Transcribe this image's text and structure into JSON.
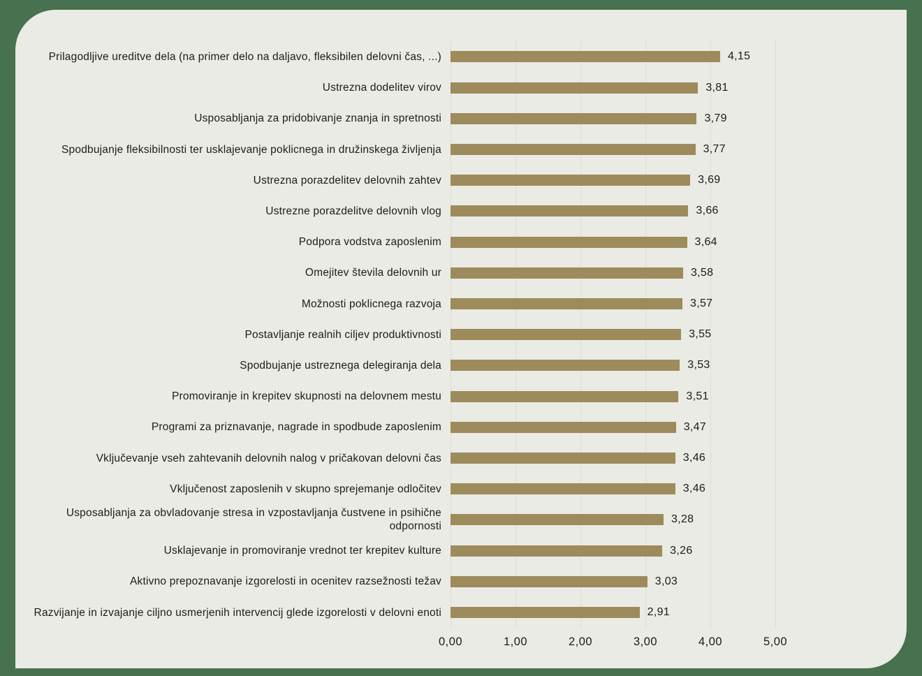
{
  "chart_data": {
    "type": "bar",
    "orientation": "horizontal",
    "title": "",
    "xlabel": "",
    "ylabel": "",
    "xlim": [
      0,
      5
    ],
    "grid": "vertical",
    "legend": "none",
    "categories": [
      "Prilagodljive ureditve dela (na primer delo na daljavo, fleksibilen delovni čas, ...)",
      "Ustrezna dodelitev virov",
      "Usposabljanja za pridobivanje znanja in spretnosti",
      "Spodbujanje fleksibilnosti ter usklajevanje poklicnega in družinskega življenja",
      "Ustrezna porazdelitev delovnih zahtev",
      "Ustrezne porazdelitve delovnih vlog",
      "Podpora vodstva zaposlenim",
      "Omejitev števila delovnih ur",
      "Možnosti poklicnega razvoja",
      "Postavljanje realnih ciljev produktivnosti",
      "Spodbujanje ustreznega delegiranja dela",
      "Promoviranje in krepitev skupnosti na delovnem mestu",
      "Programi za priznavanje, nagrade in spodbude zaposlenim",
      "Vključevanje vseh zahtevanih delovnih nalog v pričakovan delovni čas",
      "Vključenost zaposlenih v skupno sprejemanje odločitev",
      "Usposabljanja za obvladovanje stresa in vzpostavljanja čustvene in psihične odpornosti",
      "Usklajevanje in promoviranje vrednot ter krepitev kulture",
      "Aktivno prepoznavanje izgorelosti in ocenitev razsežnosti težav",
      "Razvijanje in izvajanje ciljno usmerjenih intervencij glede izgorelosti v delovni enoti"
    ],
    "values": [
      4.15,
      3.81,
      3.79,
      3.77,
      3.69,
      3.66,
      3.64,
      3.58,
      3.57,
      3.55,
      3.53,
      3.51,
      3.47,
      3.46,
      3.46,
      3.28,
      3.26,
      3.03,
      2.91
    ],
    "value_labels": [
      "4,15",
      "3,81",
      "3,79",
      "3,77",
      "3,69",
      "3,66",
      "3,64",
      "3,58",
      "3,57",
      "3,55",
      "3,53",
      "3,51",
      "3,47",
      "3,46",
      "3,46",
      "3,28",
      "3,26",
      "3,03",
      "2,91"
    ],
    "x_ticks": [
      "0,00",
      "1,00",
      "2,00",
      "3,00",
      "4,00",
      "5,00"
    ],
    "x_tick_values": [
      0,
      1,
      2,
      3,
      4,
      5
    ],
    "colors": {
      "bar": "#9d8b5c",
      "panel_background": "#eaebe4",
      "page_background": "#48714f",
      "gridline": "#dcded5",
      "text": "#1c1c1c"
    }
  }
}
